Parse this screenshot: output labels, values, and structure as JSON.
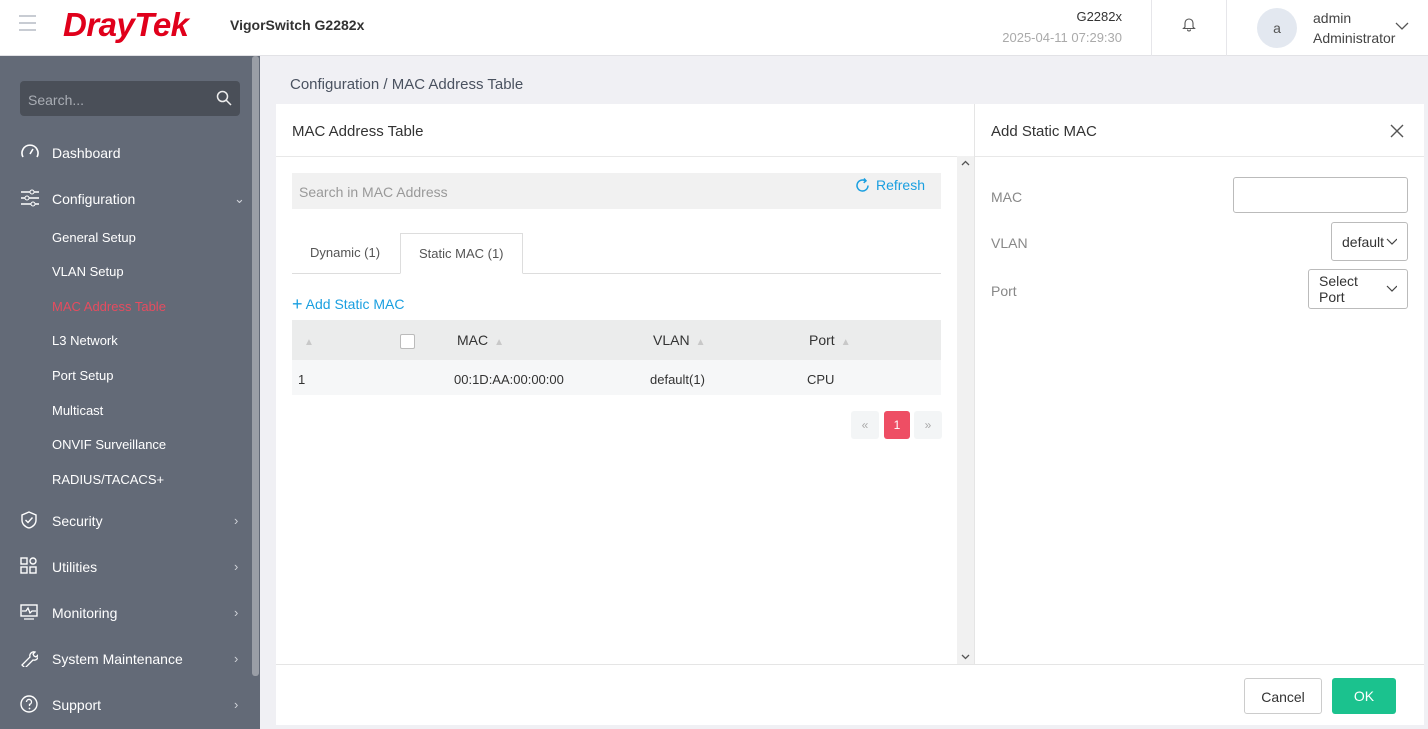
{
  "header": {
    "brand": "DrayTek",
    "model": "VigorSwitch G2282x",
    "device_name": "G2282x",
    "datetime": "2025-04-11 07:29:30",
    "avatar_letter": "a",
    "username": "admin",
    "role": "Administrator"
  },
  "sidebar": {
    "search_placeholder": "Search...",
    "items": [
      {
        "label": "Dashboard",
        "icon": "gauge-icon"
      },
      {
        "label": "Configuration",
        "icon": "sliders-icon"
      },
      {
        "label": "Security",
        "icon": "shield-icon"
      },
      {
        "label": "Utilities",
        "icon": "grid-icon"
      },
      {
        "label": "Monitoring",
        "icon": "monitor-icon"
      },
      {
        "label": "System Maintenance",
        "icon": "wrench-icon"
      },
      {
        "label": "Support",
        "icon": "help-icon"
      }
    ],
    "sub_items": [
      "General Setup",
      "VLAN Setup",
      "MAC Address Table",
      "L3 Network",
      "Port Setup",
      "Multicast",
      "ONVIF Surveillance",
      "RADIUS/TACACS+"
    ],
    "active": "MAC Address Table"
  },
  "breadcrumb": {
    "parent": "Configuration",
    "separator": "/",
    "current": "MAC Address Table"
  },
  "main": {
    "title": "MAC Address Table",
    "search_placeholder": "Search in MAC Address",
    "refresh_label": "Refresh",
    "tabs": [
      {
        "label": "Dynamic (1)"
      },
      {
        "label": "Static MAC (1)",
        "active": true
      }
    ],
    "add_label": "Add Static MAC",
    "columns": [
      "MAC",
      "VLAN",
      "Port"
    ],
    "rows": [
      {
        "index": "1",
        "mac": "00:1D:AA:00:00:00",
        "vlan": "default(1)",
        "port": "CPU"
      }
    ],
    "pagination": {
      "prev": "«",
      "current": "1",
      "next": "»"
    }
  },
  "form": {
    "title": "Add Static MAC",
    "mac_label": "MAC",
    "mac_value": "",
    "vlan_label": "VLAN",
    "vlan_value": "default",
    "port_label": "Port",
    "port_value": "Select Port",
    "cancel": "Cancel",
    "ok": "OK"
  },
  "colors": {
    "brand": "#e0001b",
    "accent": "#1a9fe0",
    "active_nav": "#e64c5f",
    "ok": "#1bc28e",
    "sidebar": "#636a77"
  }
}
